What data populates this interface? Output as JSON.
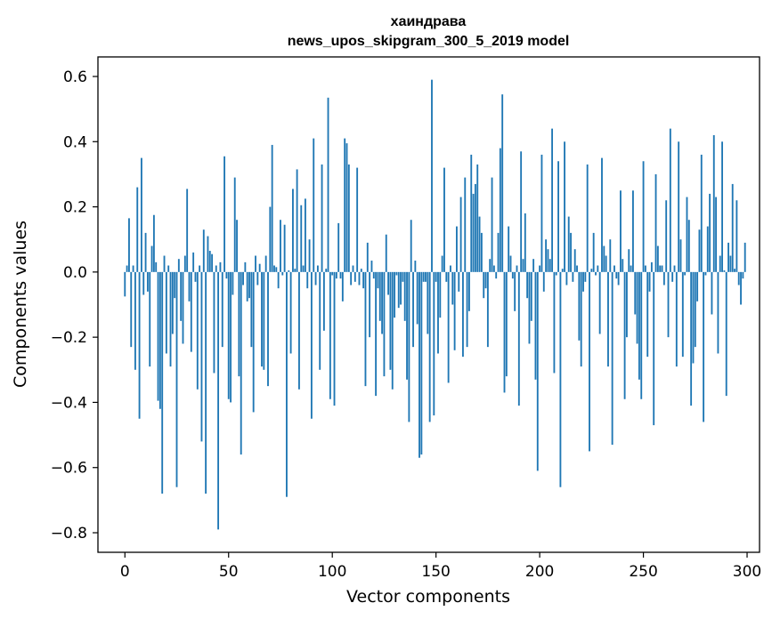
{
  "chart_data": {
    "type": "bar",
    "title_line1": "хаиндрава",
    "title_line2": "news_upos_skipgram_300_5_2019 model",
    "xlabel": "Vector components",
    "ylabel": "Components values",
    "xlim": [
      -13,
      306
    ],
    "ylim": [
      -0.86,
      0.66
    ],
    "x_ticks": [
      0,
      50,
      100,
      150,
      200,
      250,
      300
    ],
    "x_tick_labels": [
      "0",
      "50",
      "100",
      "150",
      "200",
      "250",
      "300"
    ],
    "y_ticks": [
      -0.8,
      -0.6,
      -0.4,
      -0.2,
      0.0,
      0.2,
      0.4,
      0.6
    ],
    "y_tick_labels": [
      "−0.8",
      "−0.6",
      "−0.4",
      "−0.2",
      "0.0",
      "0.2",
      "0.4",
      "0.6"
    ],
    "bar_color": "#1f77b4",
    "values": [
      -0.075,
      0.02,
      0.165,
      -0.23,
      0.02,
      -0.3,
      0.26,
      -0.45,
      0.35,
      -0.07,
      0.12,
      -0.06,
      -0.29,
      0.08,
      0.175,
      0.03,
      -0.395,
      -0.42,
      -0.68,
      0.05,
      -0.25,
      0.02,
      -0.29,
      -0.19,
      -0.08,
      -0.66,
      0.04,
      -0.15,
      -0.22,
      0.05,
      0.255,
      -0.09,
      -0.245,
      0.06,
      -0.03,
      -0.36,
      0.02,
      -0.52,
      0.13,
      -0.68,
      0.11,
      0.065,
      0.055,
      -0.31,
      0.02,
      -0.79,
      0.03,
      -0.23,
      0.355,
      -0.02,
      -0.39,
      -0.4,
      -0.07,
      0.29,
      0.16,
      -0.32,
      -0.56,
      -0.04,
      0.03,
      -0.09,
      -0.08,
      -0.23,
      -0.43,
      0.05,
      -0.04,
      0.025,
      -0.29,
      -0.3,
      0.05,
      -0.35,
      0.2,
      0.39,
      0.02,
      0.015,
      -0.05,
      0.16,
      -0.01,
      0.145,
      -0.69,
      0.005,
      -0.25,
      0.255,
      0.01,
      0.315,
      -0.36,
      0.205,
      0.02,
      0.225,
      -0.05,
      0.1,
      -0.45,
      0.41,
      -0.04,
      0.02,
      -0.3,
      0.33,
      -0.18,
      0.01,
      0.535,
      -0.39,
      -0.01,
      -0.41,
      -0.02,
      0.15,
      -0.02,
      -0.09,
      0.41,
      0.395,
      0.33,
      -0.04,
      0.02,
      -0.03,
      0.32,
      -0.04,
      0.01,
      -0.05,
      -0.35,
      0.09,
      -0.2,
      0.035,
      -0.02,
      -0.38,
      -0.05,
      -0.15,
      -0.19,
      -0.32,
      0.115,
      -0.07,
      -0.3,
      -0.36,
      -0.14,
      -0.01,
      -0.11,
      -0.1,
      -0.03,
      -0.15,
      -0.33,
      -0.46,
      0.16,
      -0.23,
      0.035,
      -0.16,
      -0.57,
      -0.56,
      -0.03,
      -0.03,
      -0.19,
      -0.46,
      0.59,
      -0.44,
      -0.03,
      -0.25,
      -0.14,
      0.05,
      0.32,
      -0.03,
      -0.34,
      0.02,
      -0.1,
      -0.24,
      0.14,
      -0.06,
      0.23,
      -0.26,
      0.29,
      -0.23,
      -0.12,
      0.36,
      0.24,
      0.27,
      0.33,
      0.17,
      0.12,
      -0.08,
      -0.05,
      -0.23,
      0.04,
      0.29,
      0.02,
      -0.02,
      0.12,
      0.38,
      0.545,
      -0.37,
      -0.32,
      0.14,
      0.05,
      -0.02,
      -0.12,
      0.02,
      -0.41,
      0.37,
      0.04,
      0.18,
      -0.08,
      -0.22,
      -0.15,
      0.04,
      -0.33,
      -0.61
    ]
  },
  "extra_values": [
    0.02,
    0.36,
    -0.06,
    0.1,
    0.07,
    0.04,
    0.44,
    -0.31,
    -0.01,
    0.34,
    -0.66,
    0.01,
    0.4,
    -0.04,
    0.17,
    0.12,
    -0.03,
    0.07,
    0.02,
    -0.21,
    -0.29,
    -0.06,
    -0.03,
    0.33,
    -0.55,
    0.01,
    0.12,
    -0.01,
    0.02,
    -0.19,
    0.35,
    0.08,
    0.05,
    -0.29,
    0.1,
    -0.53,
    0.02,
    -0.02,
    -0.04,
    0.25,
    0.04,
    -0.39,
    -0.2,
    0.07,
    0.02,
    0.25,
    -0.13,
    -0.22,
    -0.33,
    -0.39,
    0.34,
    0.02,
    -0.26,
    -0.06,
    0.03,
    -0.47,
    0.3,
    0.08,
    0.02,
    0.02,
    -0.04,
    0.22,
    -0.2,
    0.44,
    -0.03,
    0.02,
    -0.29,
    0.4,
    0.1,
    -0.26,
    -0.01,
    0.23,
    0.16,
    -0.41,
    -0.28,
    -0.23,
    -0.09,
    0.13,
    0.36,
    -0.46,
    -0.01,
    0.14,
    0.24,
    -0.13,
    0.42,
    0.23,
    -0.25,
    0.05,
    0.4,
    0.005,
    -0.38,
    0.09,
    0.05,
    0.27,
    0.01,
    0.22,
    -0.04,
    -0.1,
    -0.02,
    0.09
  ]
}
